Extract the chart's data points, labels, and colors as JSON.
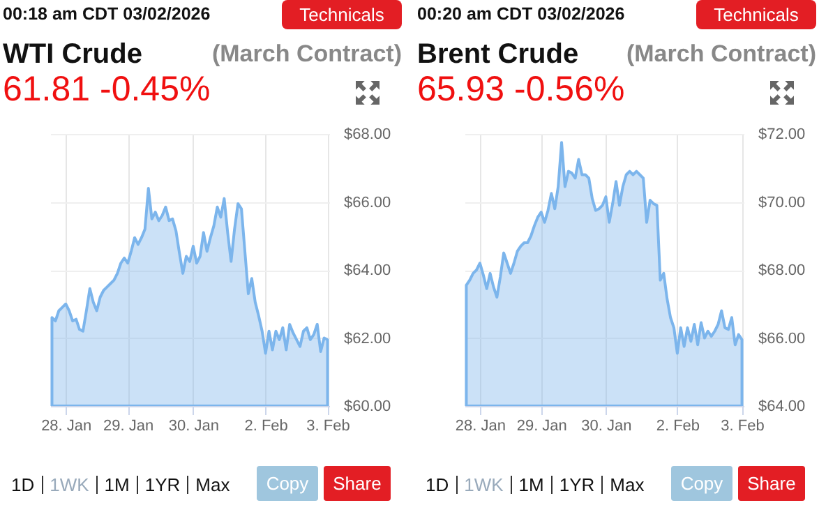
{
  "chart_data": [
    {
      "type": "area",
      "title": "WTI Crude",
      "subtitle": "61.81 -0.45%",
      "annotations": [
        "00:18 am CDT 03/02/2026",
        "Technicals",
        "(March Contract)",
        "1D",
        "1WK",
        "1M",
        "1YR",
        "Max",
        "Copy",
        "Share"
      ],
      "categories": [
        null,
        null,
        null,
        null,
        "28. Jan",
        null,
        null,
        null,
        null,
        null,
        null,
        null,
        null,
        null,
        null,
        null,
        null,
        null,
        null,
        null,
        null,
        null,
        "29. Jan",
        null,
        null,
        null,
        null,
        null,
        null,
        null,
        null,
        null,
        null,
        null,
        null,
        null,
        null,
        null,
        null,
        null,
        null,
        "30. Jan",
        null,
        null,
        null,
        null,
        null,
        null,
        null,
        null,
        null,
        null,
        null,
        null,
        null,
        null,
        null,
        null,
        null,
        null,
        null,
        null,
        "2. Feb",
        null,
        null,
        null,
        null,
        null,
        null,
        null,
        null,
        null,
        null,
        null,
        null,
        null,
        null,
        null,
        null,
        null,
        "3. Feb"
      ],
      "series": [
        {
          "color": "#7cb5ec",
          "values": [
            62.6,
            62.5,
            62.8,
            62.9,
            63.0,
            62.8,
            62.5,
            62.55,
            62.25,
            62.2,
            62.8,
            63.45,
            63.05,
            62.8,
            63.2,
            63.4,
            63.5,
            63.6,
            63.7,
            63.9,
            64.2,
            64.35,
            64.2,
            64.55,
            64.95,
            64.75,
            64.95,
            65.2,
            66.4,
            65.5,
            65.7,
            65.45,
            65.6,
            65.85,
            65.45,
            65.5,
            65.15,
            64.5,
            63.9,
            64.4,
            64.25,
            64.7,
            64.2,
            64.4,
            65.1,
            64.55,
            64.95,
            65.3,
            65.85,
            65.55,
            66.1,
            65.1,
            64.25,
            65.2,
            65.95,
            65.8,
            64.55,
            63.3,
            63.75,
            63.05,
            62.65,
            62.2,
            61.55,
            62.2,
            61.65,
            62.2,
            61.95,
            62.3,
            61.65,
            62.4,
            62.15,
            61.95,
            61.75,
            62.2,
            62.3,
            61.95,
            62.1,
            62.4,
            61.6,
            62.0,
            61.95
          ]
        }
      ],
      "ylim": [
        60,
        68
      ],
      "yticks": [
        {
          "value": 60,
          "label": "$60.00"
        },
        {
          "value": 62,
          "label": "$62.00"
        },
        {
          "value": 64,
          "label": "$64.00"
        },
        {
          "value": 66,
          "label": "$66.00"
        },
        {
          "value": 68,
          "label": "$68.00"
        }
      ],
      "grid": true
    },
    {
      "type": "area",
      "title": "Brent Crude",
      "subtitle": "65.93 -0.56%",
      "annotations": [
        "00:20 am CDT 03/02/2026",
        "Technicals",
        "(March Contract)",
        "1D",
        "1WK",
        "1M",
        "1YR",
        "Max",
        "Copy",
        "Share"
      ],
      "categories": [
        null,
        null,
        null,
        null,
        "28. Jan",
        null,
        null,
        null,
        null,
        null,
        null,
        null,
        null,
        null,
        null,
        null,
        null,
        null,
        null,
        null,
        null,
        null,
        "29. Jan",
        null,
        null,
        null,
        null,
        null,
        null,
        null,
        null,
        null,
        null,
        null,
        null,
        null,
        null,
        null,
        null,
        null,
        null,
        "30. Jan",
        null,
        null,
        null,
        null,
        null,
        null,
        null,
        null,
        null,
        null,
        null,
        null,
        null,
        null,
        null,
        null,
        null,
        null,
        null,
        null,
        "2. Feb",
        null,
        null,
        null,
        null,
        null,
        null,
        null,
        null,
        null,
        null,
        null,
        null,
        null,
        null,
        null,
        null,
        null,
        null,
        "3. Feb"
      ],
      "series": [
        {
          "color": "#7cb5ec",
          "values": [
            67.55,
            67.7,
            67.9,
            68.0,
            68.2,
            67.85,
            67.45,
            67.9,
            67.5,
            67.2,
            67.8,
            68.5,
            68.2,
            67.9,
            68.2,
            68.55,
            68.7,
            68.8,
            68.8,
            69.0,
            69.3,
            69.55,
            69.7,
            69.4,
            69.75,
            70.25,
            69.8,
            70.45,
            71.75,
            70.45,
            70.9,
            70.85,
            70.7,
            71.25,
            70.8,
            70.8,
            70.7,
            70.1,
            69.75,
            69.8,
            69.9,
            70.15,
            69.4,
            69.95,
            70.6,
            69.9,
            70.45,
            70.8,
            70.9,
            70.8,
            70.9,
            70.8,
            70.7,
            69.4,
            70.05,
            69.95,
            69.9,
            67.7,
            67.9,
            67.15,
            66.6,
            66.3,
            65.55,
            66.3,
            65.75,
            66.3,
            65.9,
            66.4,
            65.8,
            66.45,
            66.0,
            66.2,
            66.05,
            66.2,
            66.4,
            66.8,
            66.3,
            66.25,
            66.6,
            65.8,
            66.1,
            65.95
          ]
        }
      ],
      "ylim": [
        64,
        72
      ],
      "yticks": [
        {
          "value": 64,
          "label": "$64.00"
        },
        {
          "value": 66,
          "label": "$66.00"
        },
        {
          "value": 68,
          "label": "$68.00"
        },
        {
          "value": 70,
          "label": "$70.00"
        },
        {
          "value": 72,
          "label": "$72.00"
        }
      ],
      "grid": true
    }
  ]
}
